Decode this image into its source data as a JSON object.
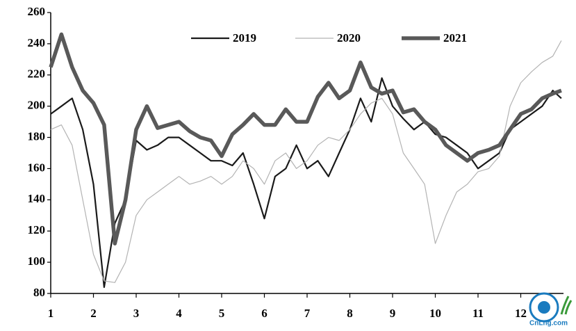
{
  "chart_data": {
    "type": "line",
    "x": [
      1,
      1.25,
      1.5,
      1.75,
      2,
      2.25,
      2.5,
      2.75,
      3,
      3.25,
      3.5,
      3.75,
      4,
      4.25,
      4.5,
      4.75,
      5,
      5.25,
      5.5,
      5.75,
      6,
      6.25,
      6.5,
      6.75,
      7,
      7.25,
      7.5,
      7.75,
      8,
      8.25,
      8.5,
      8.75,
      9,
      9.25,
      9.5,
      9.75,
      10,
      10.25,
      10.5,
      10.75,
      11,
      11.25,
      11.5,
      11.75,
      12,
      12.25,
      12.5,
      12.75,
      12.95
    ],
    "series": [
      {
        "name": "2019",
        "color": "#1a1a1a",
        "width": 2.2,
        "values": [
          195,
          200,
          205,
          185,
          150,
          84,
          125,
          140,
          178,
          172,
          175,
          180,
          180,
          175,
          170,
          165,
          165,
          162,
          170,
          150,
          128,
          155,
          160,
          175,
          160,
          165,
          155,
          170,
          185,
          205,
          190,
          218,
          200,
          192,
          185,
          190,
          182,
          180,
          175,
          170,
          160,
          165,
          170,
          185,
          190,
          195,
          200,
          210,
          205
        ]
      },
      {
        "name": "2020",
        "color": "#b3b3b3",
        "width": 1.2,
        "values": [
          185,
          188,
          175,
          140,
          105,
          88,
          87,
          100,
          130,
          140,
          145,
          150,
          155,
          150,
          152,
          155,
          150,
          155,
          165,
          160,
          150,
          165,
          170,
          160,
          165,
          175,
          180,
          178,
          185,
          195,
          202,
          205,
          195,
          170,
          160,
          150,
          112,
          130,
          145,
          150,
          158,
          160,
          168,
          200,
          215,
          222,
          228,
          232,
          242
        ]
      },
      {
        "name": "2021",
        "color": "#595959",
        "width": 5.5,
        "values": [
          225,
          246,
          225,
          210,
          202,
          188,
          112,
          140,
          185,
          200,
          186,
          188,
          190,
          184,
          180,
          178,
          168,
          182,
          188,
          195,
          188,
          188,
          198,
          190,
          190,
          206,
          215,
          205,
          210,
          228,
          212,
          208,
          210,
          196,
          198,
          190,
          185,
          175,
          170,
          165,
          170,
          172,
          175,
          185,
          195,
          198,
          205,
          208,
          210
        ]
      }
    ],
    "xlim": [
      1,
      13
    ],
    "xticks": [
      1,
      2,
      3,
      4,
      5,
      6,
      7,
      8,
      9,
      10,
      11,
      12
    ],
    "ylim": [
      80,
      260
    ],
    "yticks": [
      80,
      100,
      120,
      140,
      160,
      180,
      200,
      220,
      240,
      260
    ],
    "grid": false,
    "legend": "top",
    "watermark": "CnLng.com"
  }
}
